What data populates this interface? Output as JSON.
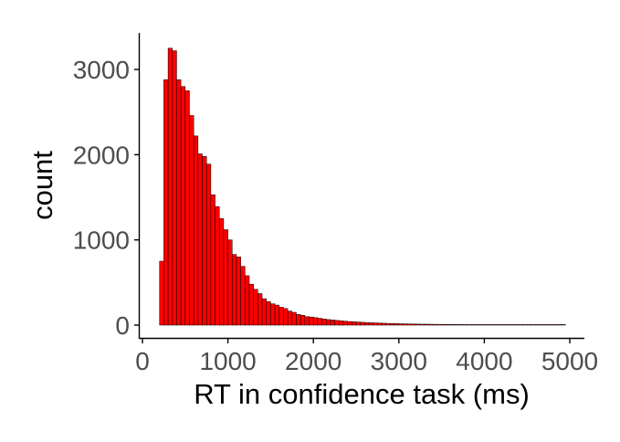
{
  "chart_data": {
    "type": "bar",
    "xlabel": "RT in confidence task (ms)",
    "ylabel": "count",
    "xlim": [
      0,
      5000
    ],
    "ylim": [
      0,
      3400
    ],
    "x_ticks": [
      {
        "value": 0,
        "label": "0"
      },
      {
        "value": 1000,
        "label": "1000"
      },
      {
        "value": 2000,
        "label": "2000"
      },
      {
        "value": 3000,
        "label": "3000"
      },
      {
        "value": 4000,
        "label": "4000"
      },
      {
        "value": 5000,
        "label": "5000"
      }
    ],
    "y_ticks": [
      {
        "value": 0,
        "label": "0"
      },
      {
        "value": 1000,
        "label": "1000"
      },
      {
        "value": 2000,
        "label": "2000"
      },
      {
        "value": 3000,
        "label": "3000"
      }
    ],
    "bin_width": 50,
    "bin_start": 200,
    "values": [
      750,
      2880,
      3250,
      3220,
      2880,
      2800,
      2750,
      2460,
      2220,
      2010,
      1980,
      1890,
      1530,
      1390,
      1250,
      1120,
      1000,
      830,
      800,
      690,
      580,
      480,
      420,
      370,
      310,
      275,
      250,
      235,
      210,
      195,
      165,
      150,
      125,
      115,
      100,
      95,
      88,
      80,
      72,
      65,
      60,
      55,
      50,
      46,
      42,
      39,
      36,
      33,
      30,
      28,
      26,
      24,
      22,
      20,
      19,
      17,
      16,
      15,
      14,
      13,
      12,
      11,
      11,
      10,
      9,
      9,
      8,
      8,
      7,
      7,
      6,
      6,
      6,
      5,
      5,
      5,
      4,
      4,
      4,
      4,
      3,
      3,
      3,
      3,
      3,
      3,
      2,
      2,
      2,
      2,
      2,
      2,
      2,
      2,
      2
    ],
    "colors": {
      "fill": "#ff0000",
      "stroke": "#000000"
    }
  }
}
